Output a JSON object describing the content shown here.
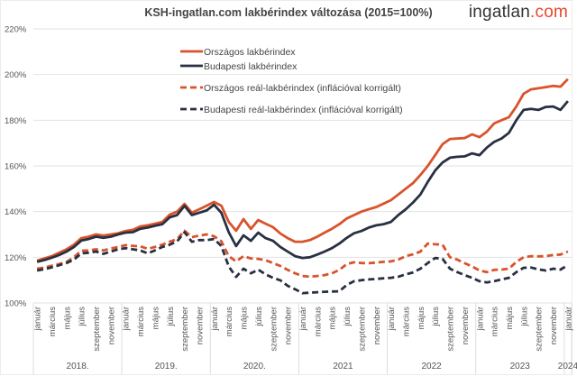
{
  "logo": {
    "main": "ingatlan",
    "suffix": ".com"
  },
  "colors": {
    "orszagos": "#d9532b",
    "budapest": "#283041",
    "grid": "#e2e2e2",
    "logo_accent": "#e8472a"
  },
  "chart_data": {
    "type": "line",
    "title": "KSH-ingatlan.com lakbérindex változása (2015=100%)",
    "ylim": [
      100,
      220
    ],
    "yticks": [
      "100%",
      "120%",
      "140%",
      "160%",
      "180%",
      "200%",
      "220%"
    ],
    "grid": true,
    "legend_placement": "top-center",
    "categories": [
      "január",
      "",
      "március",
      "",
      "május",
      "",
      "július",
      "",
      "szeptember",
      "",
      "november",
      "",
      "január",
      "",
      "március",
      "",
      "május",
      "",
      "július",
      "",
      "szeptember",
      "",
      "november",
      "",
      "január",
      "",
      "március",
      "",
      "május",
      "",
      "július",
      "",
      "szeptember",
      "",
      "november",
      "",
      "január",
      "",
      "március",
      "",
      "május",
      "",
      "július",
      "",
      "szeptember",
      "",
      "november",
      "",
      "január",
      "",
      "március",
      "",
      "május",
      "",
      "július",
      "",
      "szeptember",
      "",
      "november",
      "",
      "január",
      "",
      "március",
      "",
      "május",
      "",
      "július",
      "",
      "szeptember",
      "",
      "november",
      "",
      "január"
    ],
    "years": [
      {
        "label": "2018.",
        "months": 12
      },
      {
        "label": "2019.",
        "months": 12
      },
      {
        "label": "2020.",
        "months": 12
      },
      {
        "label": "2021",
        "months": 12
      },
      {
        "label": "2022",
        "months": 12
      },
      {
        "label": "2023",
        "months": 12
      },
      {
        "label": "2024",
        "months": 1
      }
    ],
    "series": [
      {
        "name": "Országos lakbérindex",
        "color": "#d9532b",
        "dashed": false,
        "values": [
          118.5,
          119.5,
          120.5,
          122,
          123.5,
          125.5,
          128.4,
          129,
          130,
          129.5,
          130,
          130.5,
          131.5,
          132,
          133.5,
          134,
          134.7,
          135.5,
          138.7,
          140,
          143.4,
          139.5,
          141,
          142.6,
          144.2,
          142.6,
          135.5,
          131.6,
          136.7,
          132.4,
          136.3,
          134.7,
          133.2,
          130.4,
          128.4,
          126.8,
          126.8,
          127.5,
          129,
          130.8,
          132.5,
          134.5,
          137,
          138.5,
          140,
          141,
          142,
          143.5,
          145,
          147.5,
          150,
          152.5,
          156,
          160,
          164.7,
          169.5,
          171.8,
          172,
          172.2,
          173.8,
          172.6,
          175,
          178.6,
          180,
          181.3,
          186,
          191.6,
          193.5,
          194,
          194.5,
          195,
          194.7,
          198
        ]
      },
      {
        "name": "Budapesti lakbérindex",
        "color": "#283041",
        "dashed": false,
        "values": [
          118,
          118.8,
          119.8,
          121,
          122.5,
          124.5,
          127.3,
          128,
          129,
          128.5,
          129,
          130,
          130.8,
          131,
          132.5,
          133,
          133.8,
          134.5,
          137.5,
          138.5,
          142.5,
          138.5,
          139.5,
          140.5,
          143,
          139.5,
          131,
          124.9,
          129.6,
          127.2,
          130.8,
          128.4,
          127.2,
          124.5,
          122.5,
          120.5,
          119.7,
          120,
          121.2,
          122.5,
          124,
          126,
          128.5,
          130.5,
          131.5,
          133,
          134,
          134.5,
          135.5,
          138.5,
          141,
          144,
          147.5,
          153,
          158,
          161.5,
          163.6,
          164,
          164.2,
          165.5,
          164.7,
          168,
          170.5,
          172,
          174.5,
          180,
          184.5,
          185,
          184.5,
          185.8,
          186,
          184.5,
          188.4
        ]
      },
      {
        "name": "Országos reál-lakbérindex (inflációval korrigált)",
        "color": "#d9532b",
        "dashed": true,
        "values": [
          115,
          115.5,
          116.3,
          117,
          118,
          120,
          122.9,
          123,
          123.5,
          123,
          123.8,
          124.5,
          125.3,
          125,
          124.8,
          123.7,
          124.5,
          125.5,
          126.8,
          128,
          131.6,
          128.8,
          129.5,
          130,
          129.2,
          127,
          120.5,
          118.2,
          120.5,
          119.5,
          119.3,
          118.7,
          117.5,
          116.2,
          114.5,
          113,
          111.8,
          111.5,
          111.8,
          112.2,
          113,
          114.5,
          117,
          117.8,
          117.5,
          117.4,
          117.7,
          118,
          118.2,
          119,
          120.5,
          121.3,
          122.5,
          126,
          125.7,
          125.5,
          120,
          119,
          117.4,
          116,
          114.2,
          113.5,
          114.5,
          114.6,
          115,
          118,
          120,
          120.5,
          120.4,
          120.5,
          121,
          121.2,
          122.5
        ]
      },
      {
        "name": "Budapesti reál-lakbérindex (inflációval korrigált)",
        "color": "#283041",
        "dashed": true,
        "values": [
          114.2,
          114.8,
          115.6,
          116.5,
          117.5,
          119,
          121.7,
          122,
          122.5,
          121.5,
          122.5,
          123.5,
          124,
          123.5,
          123,
          121.7,
          123,
          124.5,
          125.5,
          127,
          131,
          126.8,
          127.5,
          127.5,
          128,
          125,
          116,
          111.4,
          115,
          113,
          114.6,
          112.5,
          111,
          109.9,
          107.5,
          106,
          104.3,
          104.5,
          104.7,
          104.9,
          105,
          105.1,
          107.9,
          109.5,
          110,
          110.3,
          110.5,
          110.8,
          111,
          111.5,
          112.5,
          113.4,
          115,
          117.5,
          119.7,
          119.3,
          115,
          113.5,
          112.2,
          111,
          109.5,
          109,
          109.5,
          110.3,
          111,
          113.5,
          115.4,
          115.5,
          114.7,
          114.2,
          115,
          114.6,
          116.6
        ]
      }
    ]
  }
}
